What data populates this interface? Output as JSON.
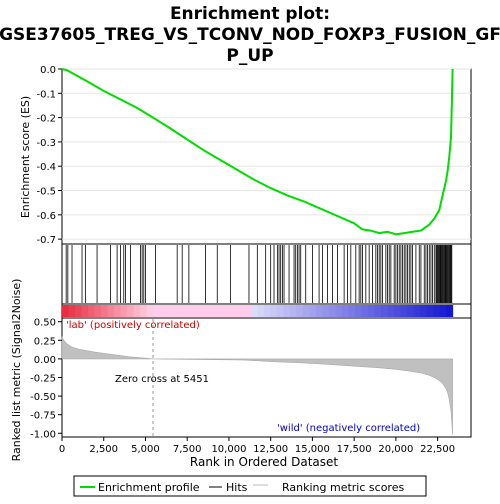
{
  "title_line1": "Enrichment plot:",
  "title_line2": "GSE37605_TREG_VS_TCONV_NOD_FOXP3_FUSION_GF",
  "title_line3": "P_UP",
  "chart_data": {
    "type": "line",
    "es_panel": {
      "ylabel": "Enrichment score (ES)",
      "ylim": [
        -0.72,
        0.0
      ],
      "yticks": [
        "0.0",
        "-0.1",
        "-0.2",
        "-0.3",
        "-0.4",
        "-0.5",
        "-0.6",
        "-0.7"
      ],
      "ytick_values": [
        0.0,
        -0.1,
        -0.2,
        -0.3,
        -0.4,
        -0.5,
        -0.6,
        -0.7
      ],
      "series": [
        {
          "name": "Enrichment profile",
          "color": "#00dd00",
          "x": [
            0,
            300,
            700,
            1500,
            2500,
            3500,
            4500,
            5451,
            6500,
            7500,
            8500,
            9500,
            10500,
            11500,
            12500,
            13500,
            14500,
            15500,
            16500,
            17500,
            18000,
            18500,
            19000,
            19500,
            20000,
            20500,
            21000,
            21500,
            22000,
            22300,
            22600,
            22800,
            23000,
            23100,
            23200,
            23300,
            23350,
            23400
          ],
          "y": [
            0.0,
            -0.005,
            -0.02,
            -0.05,
            -0.09,
            -0.125,
            -0.16,
            -0.2,
            -0.245,
            -0.29,
            -0.335,
            -0.375,
            -0.415,
            -0.455,
            -0.49,
            -0.52,
            -0.545,
            -0.575,
            -0.605,
            -0.635,
            -0.66,
            -0.665,
            -0.675,
            -0.67,
            -0.68,
            -0.675,
            -0.67,
            -0.665,
            -0.64,
            -0.615,
            -0.58,
            -0.52,
            -0.46,
            -0.42,
            -0.36,
            -0.28,
            -0.15,
            0.0
          ]
        }
      ]
    },
    "hits_panel": {
      "legend_name": "Hits",
      "positions": [
        250,
        350,
        600,
        1200,
        1400,
        2100,
        2900,
        3300,
        3500,
        3700,
        3800,
        4100,
        4700,
        4800,
        4900,
        5000,
        5600,
        6900,
        7200,
        7600,
        8600,
        9300,
        10100,
        11200,
        11700,
        12200,
        12500,
        12700,
        12900,
        13000,
        13100,
        13200,
        13300,
        13600,
        13900,
        14000,
        14100,
        14200,
        14300,
        14600,
        15000,
        15400,
        15600,
        15900,
        16200,
        16500,
        16900,
        17100,
        17300,
        17600,
        17800,
        17900,
        18000,
        18200,
        18400,
        18600,
        18800,
        18900,
        19000,
        19100,
        19200,
        19400,
        19500,
        19600,
        19700,
        19900,
        20000,
        20100,
        20200,
        20300,
        20400,
        20500,
        20600,
        20700,
        20800,
        20900,
        21000,
        21200,
        21400,
        21500,
        21700,
        21800,
        21900,
        22000,
        22100,
        22200,
        22300,
        22400,
        22450,
        22500,
        22550,
        22600,
        22650,
        22700,
        22750,
        22800,
        22850,
        22900,
        22950,
        23000,
        23050,
        23100,
        23150,
        23200,
        23250,
        23300,
        23350
      ]
    },
    "ranking_panel": {
      "ylabel": "Ranked list metric (Signal2Noise)",
      "xlabel": "Rank in Ordered Dataset",
      "legend_name": "Ranking metric scores",
      "ylim": [
        -1.05,
        0.55
      ],
      "yticks": [
        "0.50",
        "0.25",
        "0.00",
        "-0.25",
        "-0.50",
        "-0.75",
        "-1.00"
      ],
      "ytick_values": [
        0.5,
        0.25,
        0.0,
        -0.25,
        -0.5,
        -0.75,
        -1.0
      ],
      "x": [
        0,
        100,
        300,
        600,
        1000,
        1500,
        2000,
        2500,
        3000,
        3500,
        4000,
        4500,
        5000,
        5451,
        6000,
        8000,
        10000,
        11000,
        12000,
        13000,
        14000,
        15000,
        16000,
        17000,
        18000,
        19000,
        19500,
        20000,
        20500,
        21000,
        21500,
        22000,
        22300,
        22600,
        22800,
        23000,
        23100,
        23200,
        23300,
        23350,
        23400
      ],
      "y": [
        0.3,
        0.25,
        0.2,
        0.16,
        0.13,
        0.11,
        0.09,
        0.075,
        0.06,
        0.045,
        0.03,
        0.02,
        0.01,
        0.0,
        -0.003,
        -0.008,
        -0.012,
        -0.016,
        -0.03,
        -0.04,
        -0.05,
        -0.06,
        -0.075,
        -0.09,
        -0.105,
        -0.12,
        -0.13,
        -0.14,
        -0.155,
        -0.17,
        -0.19,
        -0.22,
        -0.25,
        -0.29,
        -0.33,
        -0.4,
        -0.45,
        -0.55,
        -0.7,
        -0.85,
        -1.02
      ],
      "annotations": {
        "positive_label": "'lab' (positively correlated)",
        "negative_label": "'wild' (negatively correlated)",
        "zero_cross": "Zero cross at 5451",
        "zero_cross_value": 5451
      }
    },
    "x_axis": {
      "xlim": [
        0,
        24500
      ],
      "xticks": [
        "0",
        "2,500",
        "5,000",
        "7,500",
        "10,000",
        "12,500",
        "15,000",
        "17,500",
        "20,000",
        "22,500"
      ],
      "xtick_values": [
        0,
        2500,
        5000,
        7500,
        10000,
        12500,
        15000,
        17500,
        20000,
        22500
      ],
      "n_genes": 23400
    },
    "legend": {
      "placement": "bottom",
      "items": [
        "Enrichment profile",
        "Hits",
        "Ranking metric scores"
      ],
      "colors": [
        "#00dd00",
        "#000000",
        "#bbbbbb"
      ]
    }
  }
}
